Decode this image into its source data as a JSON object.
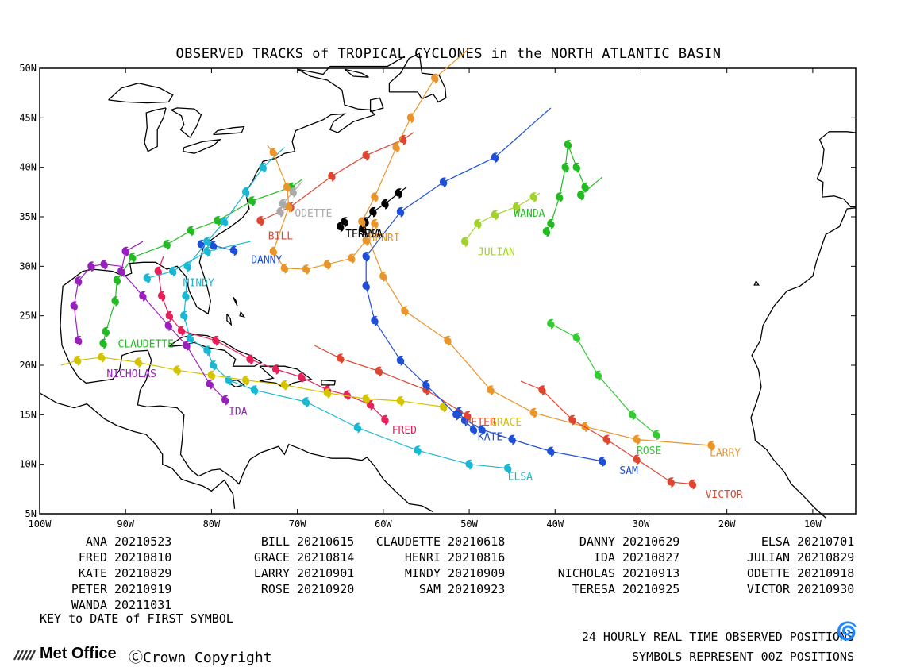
{
  "title": "OBSERVED TRACKS of TROPICAL CYCLONES in the NORTH ATLANTIC BASIN",
  "map": {
    "lon_range": [
      -100,
      -5
    ],
    "lat_range": [
      5,
      50
    ],
    "lat_ticks": [
      {
        "value": 50,
        "label": "50N"
      },
      {
        "value": 45,
        "label": "45N"
      },
      {
        "value": 40,
        "label": "40N"
      },
      {
        "value": 35,
        "label": "35N"
      },
      {
        "value": 30,
        "label": "30N"
      },
      {
        "value": 25,
        "label": "25N"
      },
      {
        "value": 20,
        "label": "20N"
      },
      {
        "value": 15,
        "label": "15N"
      },
      {
        "value": 10,
        "label": "10N"
      },
      {
        "value": 5,
        "label": "5N"
      }
    ],
    "lon_ticks": [
      {
        "value": -100,
        "label": "100W"
      },
      {
        "value": -90,
        "label": "90W"
      },
      {
        "value": -80,
        "label": "80W"
      },
      {
        "value": -70,
        "label": "70W"
      },
      {
        "value": -60,
        "label": "60W"
      },
      {
        "value": -50,
        "label": "50W"
      },
      {
        "value": -40,
        "label": "40W"
      },
      {
        "value": -30,
        "label": "30W"
      },
      {
        "value": -20,
        "label": "20W"
      },
      {
        "value": -10,
        "label": "10W"
      }
    ]
  },
  "storms": [
    {
      "name": "ANA",
      "date": "20210523",
      "color": "#000000",
      "label_at": [
        -62.5,
        33.0
      ],
      "track": [
        [
          -62.4,
          33.8
        ],
        [
          -62.1,
          34.5
        ],
        [
          -61.2,
          35.5
        ],
        [
          -59.8,
          36.3
        ],
        [
          -58.2,
          37.4
        ],
        [
          -57.3,
          38.0
        ]
      ]
    },
    {
      "name": "BILL",
      "date": "20210615",
      "color": "#e0452f",
      "label_at": [
        -73.4,
        32.7
      ],
      "track": [
        [
          -74.3,
          34.6
        ],
        [
          -70.8,
          36.0
        ],
        [
          -66.0,
          39.1
        ],
        [
          -62.0,
          41.2
        ],
        [
          -57.7,
          42.8
        ],
        [
          -56.5,
          43.5
        ]
      ]
    },
    {
      "name": "CLAUDETTE",
      "date": "20210618",
      "color": "#22bb22",
      "label_at": [
        -90.9,
        21.8
      ],
      "track": [
        [
          -92.6,
          22.2
        ],
        [
          -92.3,
          23.4
        ],
        [
          -91.2,
          26.5
        ],
        [
          -91.0,
          28.6
        ],
        [
          -89.2,
          30.9
        ],
        [
          -85.2,
          32.2
        ],
        [
          -82.4,
          33.6
        ],
        [
          -79.3,
          34.6
        ],
        [
          -75.3,
          36.6
        ],
        [
          -70.7,
          38.0
        ],
        [
          -69.4,
          38.8
        ]
      ]
    },
    {
      "name": "DANNY",
      "date": "20210629",
      "color": "#1f4fd6",
      "label_at": [
        -75.4,
        30.3
      ],
      "track": [
        [
          -77.4,
          31.6
        ],
        [
          -79.8,
          32.1
        ],
        [
          -81.2,
          32.2
        ]
      ]
    },
    {
      "name": "ELSA",
      "date": "20210701",
      "color": "#19b8d3",
      "label_at": [
        -45.5,
        8.4
      ],
      "track": [
        [
          -45.5,
          9.6
        ],
        [
          -50.0,
          10.0
        ],
        [
          -56.0,
          11.4
        ],
        [
          -63.0,
          13.7
        ],
        [
          -69.0,
          16.3
        ],
        [
          -75.0,
          17.5
        ],
        [
          -78.0,
          18.5
        ],
        [
          -79.8,
          20.0
        ],
        [
          -80.5,
          21.5
        ],
        [
          -82.5,
          22.7
        ],
        [
          -83.2,
          25.0
        ],
        [
          -83.0,
          27.0
        ],
        [
          -82.8,
          30.0
        ],
        [
          -80.5,
          32.5
        ],
        [
          -78.5,
          34.5
        ],
        [
          -76.0,
          37.5
        ],
        [
          -74.0,
          40.0
        ],
        [
          -71.5,
          42.0
        ]
      ]
    },
    {
      "name": "FRED",
      "date": "20210810",
      "color": "#e8205a",
      "label_at": [
        -59.0,
        13.1
      ],
      "track": [
        [
          -59.8,
          14.5
        ],
        [
          -61.5,
          16.0
        ],
        [
          -64.2,
          17.0
        ],
        [
          -66.5,
          17.5
        ],
        [
          -69.5,
          18.8
        ],
        [
          -72.5,
          19.6
        ],
        [
          -75.5,
          20.6
        ],
        [
          -79.5,
          22.5
        ],
        [
          -83.5,
          23.5
        ],
        [
          -84.9,
          25.0
        ],
        [
          -85.8,
          27.0
        ],
        [
          -86.2,
          29.5
        ],
        [
          -85.6,
          31.0
        ]
      ]
    },
    {
      "name": "GRACE",
      "date": "20210814",
      "color": "#d4c400",
      "label_at": [
        -47.5,
        13.9
      ],
      "track": [
        [
          -53.0,
          15.8
        ],
        [
          -58.0,
          16.4
        ],
        [
          -62.0,
          16.6
        ],
        [
          -66.5,
          17.2
        ],
        [
          -71.5,
          18.0
        ],
        [
          -76.0,
          18.5
        ],
        [
          -80.0,
          19.0
        ],
        [
          -84.0,
          19.5
        ],
        [
          -88.5,
          20.3
        ],
        [
          -92.8,
          20.8
        ],
        [
          -95.6,
          20.5
        ],
        [
          -97.5,
          20.0
        ]
      ]
    },
    {
      "name": "HENRI",
      "date": "20210816",
      "color": "#e9952a",
      "label_at": [
        -61.7,
        32.5
      ],
      "track": [
        [
          -61.0,
          34.3
        ],
        [
          -62.0,
          32.6
        ],
        [
          -63.7,
          30.8
        ],
        [
          -66.5,
          30.2
        ],
        [
          -69.0,
          29.7
        ],
        [
          -71.5,
          29.8
        ],
        [
          -72.8,
          31.5
        ],
        [
          -71.0,
          36.0
        ],
        [
          -71.2,
          38.0
        ],
        [
          -72.8,
          41.5
        ],
        [
          -73.5,
          42.2
        ]
      ]
    },
    {
      "name": "IDA",
      "date": "20210827",
      "color": "#9b1fbf",
      "label_at": [
        -78.0,
        15.0
      ],
      "track": [
        [
          -78.4,
          16.5
        ],
        [
          -80.2,
          18.1
        ],
        [
          -82.9,
          22.0
        ],
        [
          -85.0,
          24.0
        ],
        [
          -88.0,
          27.0
        ],
        [
          -90.5,
          29.5
        ],
        [
          -90.0,
          31.5
        ],
        [
          -88.0,
          32.5
        ]
      ]
    },
    {
      "name": "JULIAN",
      "date": "20210829",
      "color": "#a3d32b",
      "label_at": [
        -49.0,
        31.1
      ],
      "track": [
        [
          -50.5,
          32.5
        ],
        [
          -49.0,
          34.3
        ],
        [
          -47.0,
          35.2
        ],
        [
          -44.5,
          36.0
        ],
        [
          -42.5,
          37.0
        ],
        [
          -41.8,
          37.4
        ]
      ]
    },
    {
      "name": "KATE",
      "date": "20210829",
      "color": "#1f4fd6",
      "label_at": [
        -49.0,
        12.4
      ],
      "track": [
        [
          -49.5,
          13.5
        ],
        [
          -50.5,
          14.4
        ],
        [
          -51.2,
          15.3
        ]
      ]
    },
    {
      "name": "LARRY",
      "date": "20210901",
      "color": "#e9952a",
      "label_at": [
        -22.0,
        10.8
      ],
      "track": [
        [
          -21.8,
          11.9
        ],
        [
          -30.5,
          12.5
        ],
        [
          -36.5,
          13.8
        ],
        [
          -42.5,
          15.2
        ],
        [
          -47.5,
          17.5
        ],
        [
          -52.5,
          22.5
        ],
        [
          -57.5,
          25.5
        ],
        [
          -60.0,
          29.0
        ],
        [
          -62.5,
          34.5
        ],
        [
          -61.0,
          37.0
        ],
        [
          -58.5,
          42.0
        ],
        [
          -56.8,
          45.0
        ],
        [
          -54.0,
          49.0
        ],
        [
          -50.0,
          52.0
        ]
      ]
    },
    {
      "name": "MINDY",
      "date": "20210909",
      "color": "#19b8d3",
      "label_at": [
        -83.3,
        28.0
      ],
      "track": [
        [
          -87.5,
          28.8
        ],
        [
          -84.5,
          29.5
        ],
        [
          -80.5,
          31.5
        ],
        [
          -75.5,
          32.5
        ]
      ]
    },
    {
      "name": "NICHOLAS",
      "date": "20210913",
      "color": "#9b1fbf",
      "label_at": [
        -92.2,
        18.8
      ],
      "track": [
        [
          -95.5,
          22.5
        ],
        [
          -96.0,
          26.0
        ],
        [
          -95.5,
          28.5
        ],
        [
          -94.0,
          30.0
        ],
        [
          -92.5,
          30.2
        ],
        [
          -90.5,
          30.0
        ]
      ]
    },
    {
      "name": "ODETTE",
      "date": "20210918",
      "color": "#aaaaaa",
      "label_at": [
        -70.3,
        35.0
      ],
      "track": [
        [
          -72.0,
          35.5
        ],
        [
          -71.7,
          36.3
        ],
        [
          -70.5,
          37.5
        ],
        [
          -69.5,
          38.5
        ]
      ]
    },
    {
      "name": "PETER",
      "date": "20210919",
      "color": "#e0452f",
      "label_at": [
        -50.5,
        13.9
      ],
      "track": [
        [
          -50.2,
          14.9
        ],
        [
          -55.0,
          17.5
        ],
        [
          -60.5,
          19.4
        ],
        [
          -65.0,
          20.7
        ],
        [
          -68.0,
          22.0
        ]
      ]
    },
    {
      "name": "ROSE",
      "date": "20210920",
      "color": "#33cc33",
      "label_at": [
        -30.5,
        11.0
      ],
      "track": [
        [
          -28.2,
          13.0
        ],
        [
          -31.0,
          15.0
        ],
        [
          -35.0,
          19.0
        ],
        [
          -37.5,
          22.8
        ],
        [
          -40.5,
          24.2
        ],
        [
          -40.8,
          24.5
        ]
      ]
    },
    {
      "name": "SAM",
      "date": "20210923",
      "color": "#1f4fd6",
      "label_at": [
        -32.5,
        9.0
      ],
      "track": [
        [
          -34.5,
          10.3
        ],
        [
          -40.5,
          11.3
        ],
        [
          -45.0,
          12.5
        ],
        [
          -48.5,
          13.5
        ],
        [
          -51.5,
          15.0
        ],
        [
          -55.0,
          18.0
        ],
        [
          -58.0,
          20.5
        ],
        [
          -61.0,
          24.5
        ],
        [
          -62.0,
          28.0
        ],
        [
          -62.0,
          31.0
        ],
        [
          -58.0,
          35.5
        ],
        [
          -53.0,
          38.5
        ],
        [
          -47.0,
          41.0
        ],
        [
          -40.5,
          46.0
        ]
      ]
    },
    {
      "name": "TERESA",
      "date": "20210925",
      "color": "#000000",
      "label_at": [
        -64.4,
        32.9
      ],
      "track": [
        [
          -65.0,
          34.0
        ],
        [
          -64.5,
          34.5
        ]
      ]
    },
    {
      "name": "VICTOR",
      "date": "20210930",
      "color": "#e0452f",
      "label_at": [
        -22.5,
        6.6
      ],
      "track": [
        [
          -24.0,
          8.0
        ],
        [
          -26.5,
          8.2
        ],
        [
          -30.5,
          10.5
        ],
        [
          -34.0,
          12.5
        ],
        [
          -38.0,
          14.5
        ],
        [
          -41.5,
          17.5
        ],
        [
          -44.0,
          18.4
        ]
      ]
    },
    {
      "name": "WANDA",
      "date": "20211031",
      "color": "#22bb22",
      "label_at": [
        -44.8,
        35.0
      ],
      "track": [
        [
          -41.0,
          33.5
        ],
        [
          -40.5,
          34.3
        ],
        [
          -39.5,
          37.0
        ],
        [
          -38.8,
          40.0
        ],
        [
          -38.5,
          42.3
        ],
        [
          -37.5,
          40.0
        ],
        [
          -36.5,
          38.0
        ],
        [
          -37.0,
          37.2
        ],
        [
          -34.5,
          39.0
        ]
      ]
    }
  ],
  "legend": {
    "columns": [
      [
        {
          "name": "ANA",
          "date": "20210523"
        },
        {
          "name": "FRED",
          "date": "20210810"
        },
        {
          "name": "KATE",
          "date": "20210829"
        },
        {
          "name": "PETER",
          "date": "20210919"
        },
        {
          "name": "WANDA",
          "date": "20211031"
        }
      ],
      [
        {
          "name": "BILL",
          "date": "20210615"
        },
        {
          "name": "GRACE",
          "date": "20210814"
        },
        {
          "name": "LARRY",
          "date": "20210901"
        },
        {
          "name": "ROSE",
          "date": "20210920"
        }
      ],
      [
        {
          "name": "CLAUDETTE",
          "date": "20210618"
        },
        {
          "name": "HENRI",
          "date": "20210816"
        },
        {
          "name": "MINDY",
          "date": "20210909"
        },
        {
          "name": "SAM",
          "date": "20210923"
        }
      ],
      [
        {
          "name": "DANNY",
          "date": "20210629"
        },
        {
          "name": "IDA",
          "date": "20210827"
        },
        {
          "name": "NICHOLAS",
          "date": "20210913"
        },
        {
          "name": "TERESA",
          "date": "20210925"
        }
      ],
      [
        {
          "name": "ELSA",
          "date": "20210701"
        },
        {
          "name": "JULIAN",
          "date": "20210829"
        },
        {
          "name": "ODETTE",
          "date": "20210918"
        },
        {
          "name": "VICTOR",
          "date": "20210930"
        }
      ]
    ],
    "key_note": "KEY to DATE of FIRST SYMBOL"
  },
  "footer": {
    "line1": "24 HOURLY REAL TIME OBSERVED POSITIONS",
    "line2": "SYMBOLS REPRESENT 00Z POSITIONS",
    "symbol_icon": "hurricane-symbol-icon",
    "org": "Met Office",
    "copyright": "Crown Copyright"
  }
}
